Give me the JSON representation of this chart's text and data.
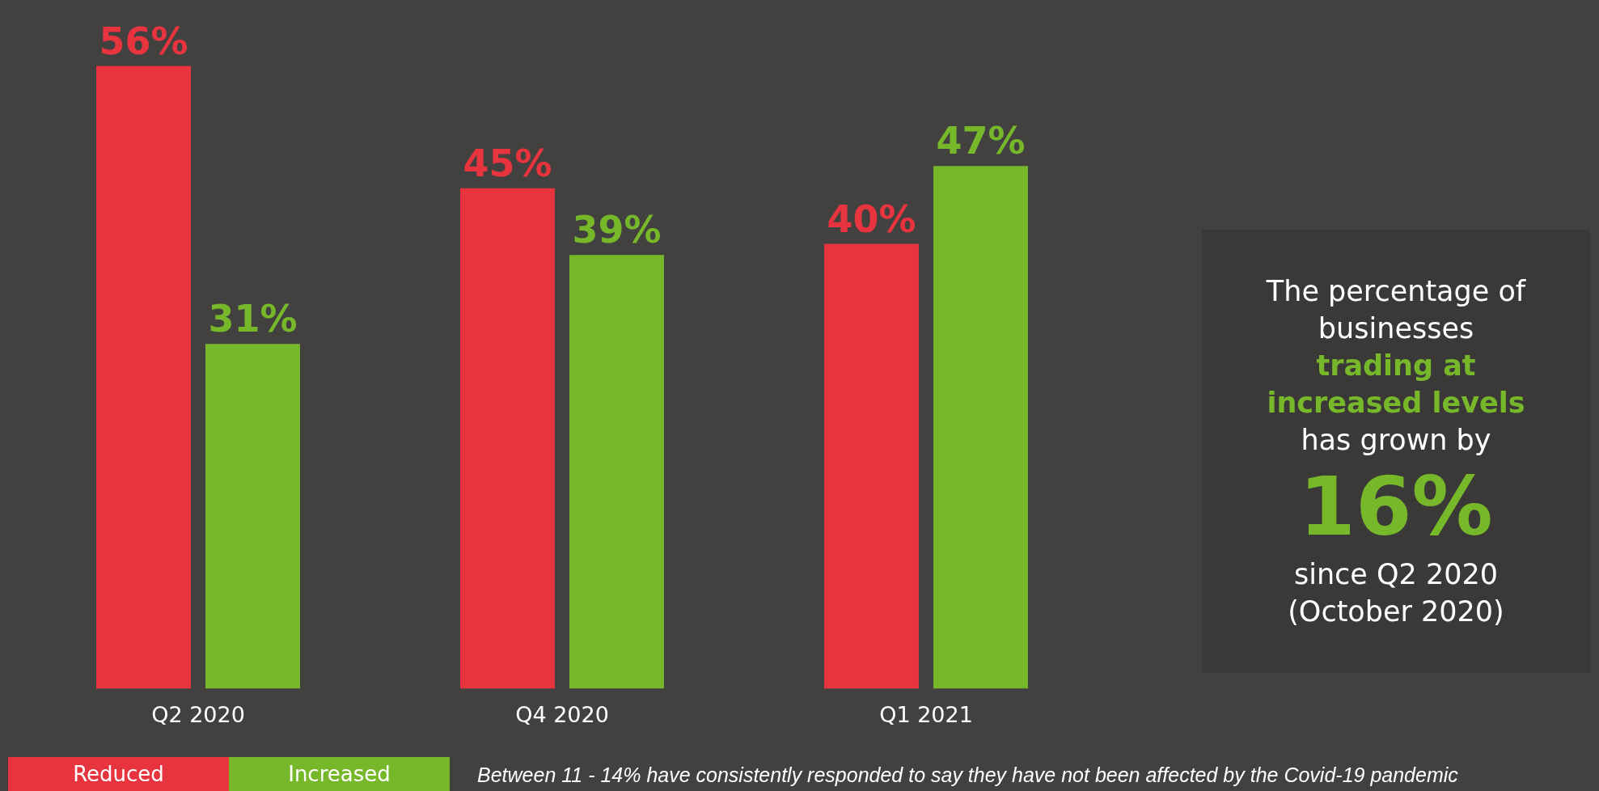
{
  "chart_data": {
    "type": "bar",
    "categories": [
      "Q2 2020",
      "Q4 2020",
      "Q1 2021"
    ],
    "series": [
      {
        "name": "Reduced",
        "color": "#e8343f",
        "values": [
          56,
          45,
          40
        ],
        "value_labels": [
          "56%",
          "45%",
          "40%"
        ]
      },
      {
        "name": "Increased",
        "color": "#76b82a",
        "values": [
          31,
          39,
          47
        ],
        "value_labels": [
          "31%",
          "39%",
          "47%"
        ]
      }
    ],
    "grid": false,
    "legend": "bottom left",
    "annotations": [
      "The percentage of",
      "businesses",
      "trading at increased levels",
      "has grown by",
      "16%",
      "since Q2 2020",
      "(October 2020)",
      "Between 11 - 14% have consistently responded to say they have not been affected by the Covid-19 pandemic"
    ]
  }
}
